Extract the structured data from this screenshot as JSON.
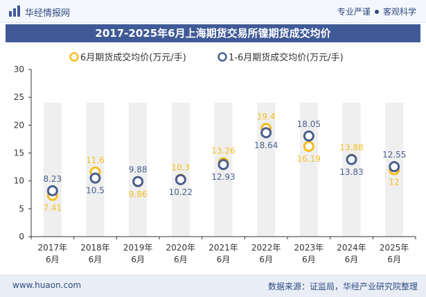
{
  "header": {
    "brand": "华经情报网",
    "slogan_left": "专业严谨",
    "slogan_right": "客观科学"
  },
  "footer": {
    "site": "www.huaon.com",
    "source": "数据来源：证监局，华经产业研究院整理"
  },
  "colors": {
    "series1": "#f5bd1f",
    "series2": "#4a5f8f",
    "band": "#efefef",
    "title_bg": "#3f5a96"
  },
  "chart_data": {
    "type": "scatter",
    "title": "2017-2025年6月上海期货交易所镍期货成交均价",
    "categories": [
      "2017年6月",
      "2018年6月",
      "2019年6月",
      "2020年6月",
      "2021年6月",
      "2022年6月",
      "2023年6月",
      "2024年6月",
      "2025年6月"
    ],
    "ylim": [
      0,
      30
    ],
    "yticks": [
      "0",
      "5",
      "10",
      "15",
      "20",
      "25",
      "30"
    ],
    "legend_position": "top-center",
    "series": [
      {
        "name": "6月期货成交均价(万元/手)",
        "values": [
          7.41,
          11.6,
          9.86,
          10.3,
          13.26,
          19.4,
          16.19,
          13.88,
          12
        ],
        "labels": [
          "7.41",
          "11.6",
          "9.86",
          "10.3",
          "13.26",
          "19.4",
          "16.19",
          "13.88",
          "12"
        ]
      },
      {
        "name": "1-6月期货成交均价(万元/手)",
        "values": [
          8.23,
          10.5,
          9.88,
          10.22,
          12.93,
          18.64,
          18.05,
          13.83,
          12.55
        ],
        "labels": [
          "8.23",
          "10.5",
          "9.88",
          "10.22",
          "12.93",
          "18.64",
          "18.05",
          "13.83",
          "12.55"
        ]
      }
    ]
  }
}
